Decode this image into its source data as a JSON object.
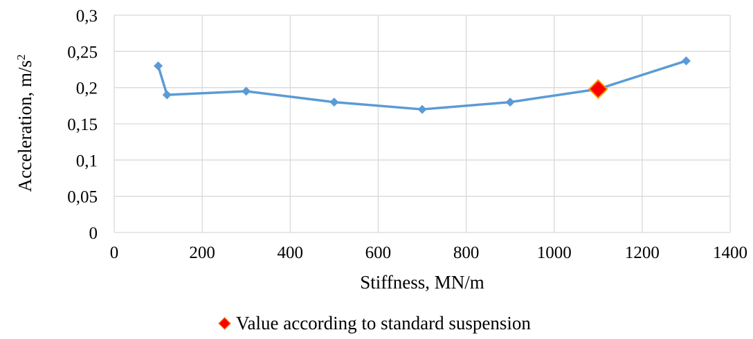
{
  "chart_data": {
    "type": "scatter",
    "xlabel": "Stiffness, MN/m",
    "ylabel_main": "Acceleration, m/s",
    "ylabel_sup": "2",
    "xlim": [
      0,
      1400
    ],
    "ylim": [
      0,
      0.3
    ],
    "x_ticks": [
      0,
      200,
      400,
      600,
      800,
      1000,
      1200,
      1400
    ],
    "x_tick_labels": [
      "0",
      "200",
      "400",
      "600",
      "800",
      "1000",
      "1200",
      "1400"
    ],
    "y_ticks": [
      0,
      0.05,
      0.1,
      0.15,
      0.2,
      0.25,
      0.3
    ],
    "y_tick_labels": [
      "0",
      "0,05",
      "0,1",
      "0,15",
      "0,2",
      "0,25",
      "0,3"
    ],
    "grid": true,
    "legend_position": "bottom",
    "series": [
      {
        "color": "#5b9bd5",
        "points": [
          {
            "x": 100,
            "y": 0.23
          },
          {
            "x": 120,
            "y": 0.19
          },
          {
            "x": 300,
            "y": 0.195
          },
          {
            "x": 500,
            "y": 0.18
          },
          {
            "x": 700,
            "y": 0.17
          },
          {
            "x": 900,
            "y": 0.18
          },
          {
            "x": 1100,
            "y": 0.198
          },
          {
            "x": 1300,
            "y": 0.237
          }
        ]
      },
      {
        "name": "Value according to standard suspension",
        "color": "#ff0000",
        "edge_color": "#f0a000",
        "points": [
          {
            "x": 1100,
            "y": 0.198
          }
        ]
      }
    ]
  }
}
